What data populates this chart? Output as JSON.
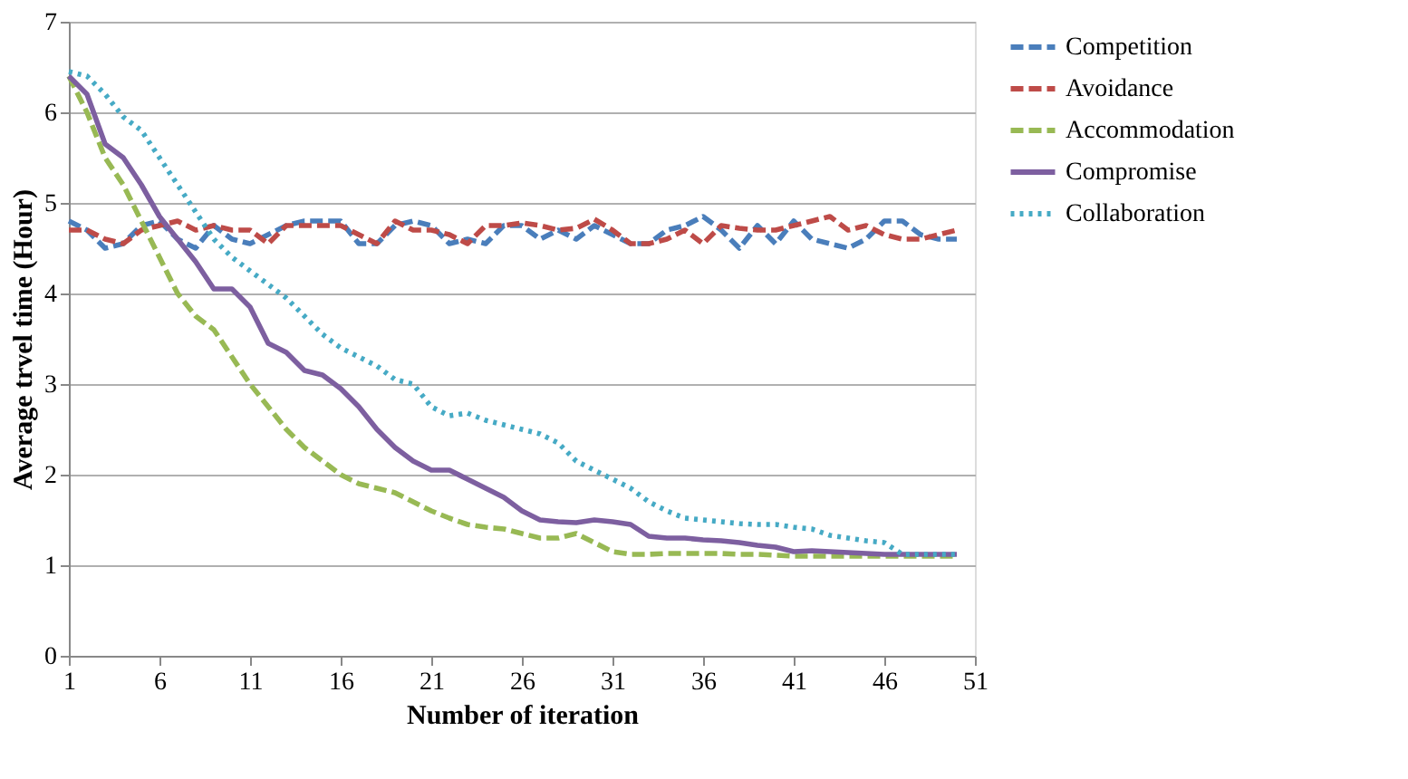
{
  "chart_data": {
    "type": "line",
    "xlabel": "Number of iteration",
    "ylabel": "Average trvel time (Hour)",
    "x": [
      1,
      2,
      3,
      4,
      5,
      6,
      7,
      8,
      9,
      10,
      11,
      12,
      13,
      14,
      15,
      16,
      17,
      18,
      19,
      20,
      21,
      22,
      23,
      24,
      25,
      26,
      27,
      28,
      29,
      30,
      31,
      32,
      33,
      34,
      35,
      36,
      37,
      38,
      39,
      40,
      41,
      42,
      43,
      44,
      45,
      46,
      47,
      48,
      49,
      50
    ],
    "xlim": [
      1,
      51
    ],
    "xticks": [
      1,
      6,
      11,
      16,
      21,
      26,
      31,
      36,
      41,
      46,
      51
    ],
    "ylim": [
      0,
      7
    ],
    "yticks": [
      0,
      1,
      2,
      3,
      4,
      5,
      6,
      7
    ],
    "grid": "y",
    "legend": "right",
    "marker": "none",
    "series": [
      {
        "name": "Competition",
        "color": "#4a7ebb",
        "line_style": "dashed",
        "values": [
          4.8,
          4.7,
          4.5,
          4.55,
          4.75,
          4.8,
          4.6,
          4.5,
          4.75,
          4.6,
          4.55,
          4.65,
          4.75,
          4.8,
          4.8,
          4.8,
          4.55,
          4.55,
          4.75,
          4.8,
          4.75,
          4.55,
          4.6,
          4.55,
          4.75,
          4.75,
          4.6,
          4.7,
          4.6,
          4.75,
          4.65,
          4.55,
          4.55,
          4.7,
          4.75,
          4.85,
          4.7,
          4.5,
          4.75,
          4.55,
          4.8,
          4.6,
          4.55,
          4.5,
          4.6,
          4.8,
          4.8,
          4.65,
          4.6,
          4.6
        ]
      },
      {
        "name": "Avoidance",
        "color": "#be4b48",
        "line_style": "dashed",
        "values": [
          4.7,
          4.7,
          4.6,
          4.55,
          4.7,
          4.75,
          4.8,
          4.7,
          4.75,
          4.7,
          4.7,
          4.55,
          4.75,
          4.75,
          4.75,
          4.75,
          4.65,
          4.55,
          4.8,
          4.7,
          4.7,
          4.65,
          4.55,
          4.75,
          4.75,
          4.78,
          4.75,
          4.7,
          4.72,
          4.82,
          4.7,
          4.55,
          4.55,
          4.6,
          4.7,
          4.55,
          4.75,
          4.72,
          4.7,
          4.7,
          4.75,
          4.8,
          4.85,
          4.7,
          4.75,
          4.65,
          4.6,
          4.6,
          4.65,
          4.7
        ]
      },
      {
        "name": "Accommodation",
        "color": "#98b954",
        "line_style": "dashed",
        "values": [
          6.4,
          6.0,
          5.5,
          5.2,
          4.8,
          4.4,
          4.0,
          3.75,
          3.6,
          3.3,
          3.0,
          2.75,
          2.5,
          2.3,
          2.15,
          2.0,
          1.9,
          1.85,
          1.8,
          1.7,
          1.6,
          1.52,
          1.45,
          1.42,
          1.4,
          1.35,
          1.3,
          1.3,
          1.35,
          1.25,
          1.15,
          1.12,
          1.12,
          1.13,
          1.13,
          1.13,
          1.13,
          1.12,
          1.12,
          1.11,
          1.1,
          1.1,
          1.1,
          1.1,
          1.1,
          1.1,
          1.1,
          1.1,
          1.1,
          1.1
        ]
      },
      {
        "name": "Compromise",
        "color": "#7d5fa0",
        "line_style": "solid",
        "values": [
          6.4,
          6.2,
          5.65,
          5.5,
          5.2,
          4.85,
          4.6,
          4.35,
          4.05,
          4.05,
          3.85,
          3.45,
          3.35,
          3.15,
          3.1,
          2.95,
          2.75,
          2.5,
          2.3,
          2.15,
          2.05,
          2.05,
          1.95,
          1.85,
          1.75,
          1.6,
          1.5,
          1.48,
          1.47,
          1.5,
          1.48,
          1.45,
          1.32,
          1.3,
          1.3,
          1.28,
          1.27,
          1.25,
          1.22,
          1.2,
          1.15,
          1.16,
          1.15,
          1.14,
          1.13,
          1.12,
          1.12,
          1.12,
          1.12,
          1.12
        ]
      },
      {
        "name": "Collaboration",
        "color": "#46aac5",
        "line_style": "dotted",
        "values": [
          6.45,
          6.4,
          6.2,
          5.95,
          5.8,
          5.5,
          5.2,
          4.9,
          4.6,
          4.4,
          4.25,
          4.1,
          3.95,
          3.75,
          3.55,
          3.4,
          3.3,
          3.2,
          3.05,
          3.0,
          2.75,
          2.65,
          2.68,
          2.6,
          2.55,
          2.5,
          2.45,
          2.35,
          2.15,
          2.05,
          1.95,
          1.85,
          1.7,
          1.6,
          1.52,
          1.5,
          1.48,
          1.46,
          1.45,
          1.45,
          1.42,
          1.4,
          1.33,
          1.3,
          1.27,
          1.25,
          1.12,
          1.12,
          1.12,
          1.12
        ]
      }
    ]
  }
}
